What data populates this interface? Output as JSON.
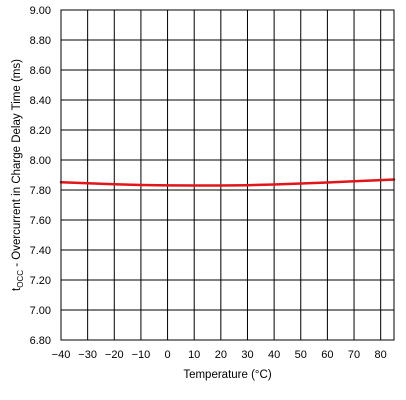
{
  "chart_data": {
    "type": "line",
    "title": "",
    "xlabel": "Temperature (°C)",
    "ylabel_main": "t",
    "ylabel_sub": "OCC",
    "ylabel_rest": " - Overcurrent in Charge Delay Time (ms)",
    "xlim": [
      -40,
      85
    ],
    "ylim": [
      6.8,
      9.0
    ],
    "x_ticks": [
      -40,
      -30,
      -20,
      -10,
      0,
      10,
      20,
      30,
      40,
      50,
      60,
      70,
      80
    ],
    "x_tick_labels": [
      "−40",
      "−30",
      "−20",
      "−10",
      "0",
      "10",
      "20",
      "30",
      "40",
      "50",
      "60",
      "70",
      "80"
    ],
    "y_ticks": [
      6.8,
      7.0,
      7.2,
      7.4,
      7.6,
      7.8,
      8.0,
      8.2,
      8.4,
      8.6,
      8.8,
      9.0
    ],
    "y_tick_labels": [
      "6.80",
      "7.00",
      "7.20",
      "7.40",
      "7.60",
      "7.80",
      "8.00",
      "8.20",
      "8.40",
      "8.60",
      "8.80",
      "9.00"
    ],
    "grid": true,
    "series": [
      {
        "color": "#e0161b",
        "x": [
          -40,
          -30,
          -20,
          -10,
          0,
          10,
          20,
          30,
          40,
          50,
          60,
          70,
          80,
          85
        ],
        "y": [
          7.852,
          7.845,
          7.838,
          7.833,
          7.831,
          7.83,
          7.83,
          7.832,
          7.837,
          7.843,
          7.85,
          7.858,
          7.866,
          7.87
        ]
      }
    ]
  }
}
